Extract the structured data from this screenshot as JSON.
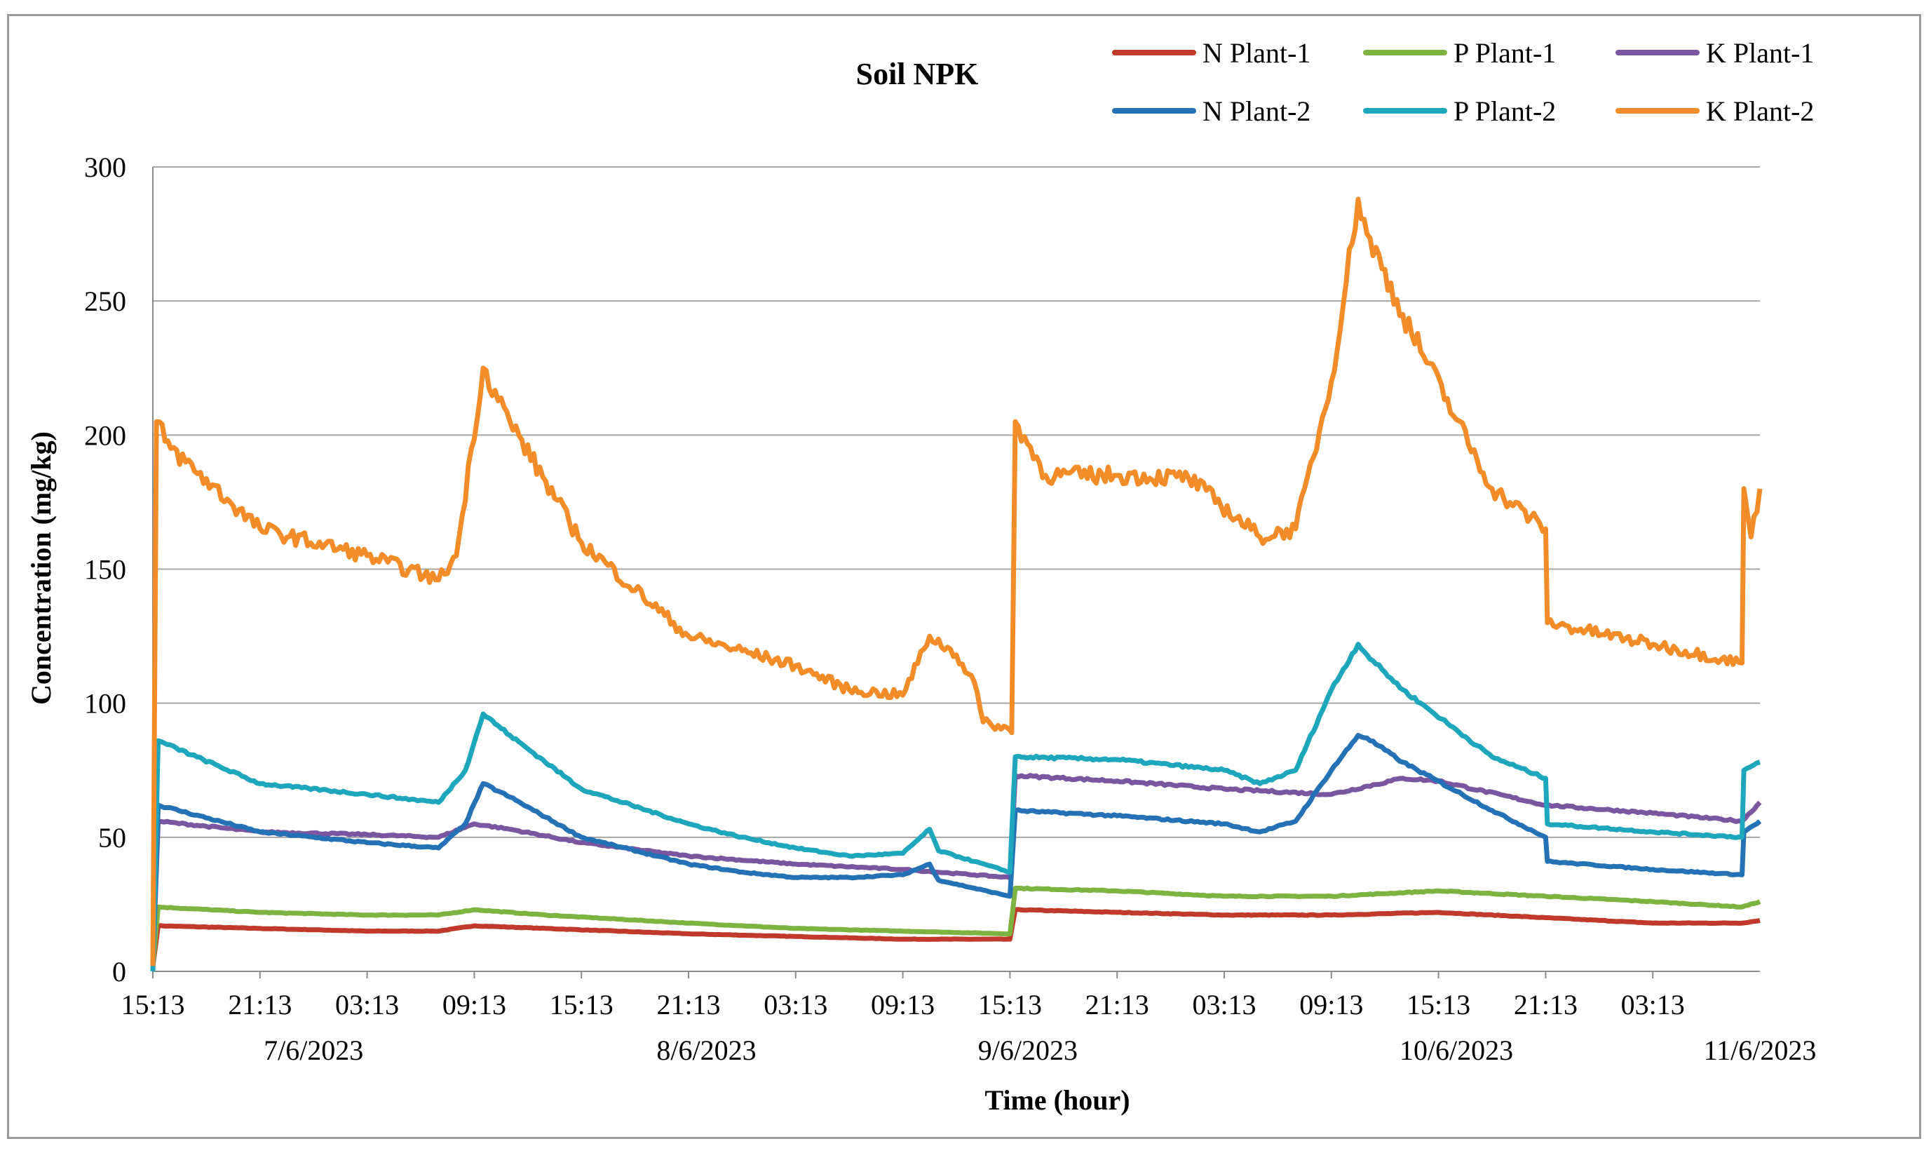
{
  "chart_data": {
    "type": "line",
    "title": "Soil NPK",
    "xlabel": "Time (hour)",
    "ylabel": "Concentration (mg/kg)",
    "ylim": [
      0,
      300
    ],
    "y_ticks": [
      "0",
      "50",
      "100",
      "150",
      "200",
      "250",
      "300"
    ],
    "grid": true,
    "legend_position": "top-right",
    "x_tick_labels": [
      "15:13",
      "21:13",
      "03:13",
      "09:13",
      "15:13",
      "21:13",
      "03:13",
      "09:13",
      "15:13",
      "21:13",
      "03:13",
      "09:13",
      "15:13",
      "21:13",
      "03:13"
    ],
    "date_labels": [
      {
        "label": "7/6/2023",
        "hour": 9
      },
      {
        "label": "8/6/2023",
        "hour": 31
      },
      {
        "label": "9/6/2023",
        "hour": 49
      },
      {
        "label": "10/6/2023",
        "hour": 73
      },
      {
        "label": "11/6/2023",
        "hour": 90
      }
    ],
    "x_unit": "hours since 7/6/2023 15:13",
    "xlim": [
      0,
      90
    ],
    "series": [
      {
        "name": "N Plant-1",
        "color": "#C0392B",
        "x": [
          0,
          0.3,
          6,
          12,
          16,
          18,
          22,
          30,
          36,
          42,
          48,
          48.3,
          54,
          60,
          66,
          72,
          78,
          84,
          89,
          90
        ],
        "y": [
          2,
          17,
          16,
          15,
          15,
          17,
          16,
          14,
          13,
          12,
          12,
          23,
          22,
          21,
          21,
          22,
          20,
          18,
          18,
          19
        ]
      },
      {
        "name": "P Plant-1",
        "color": "#7DB441",
        "x": [
          0,
          0.3,
          6,
          12,
          16,
          18,
          22,
          30,
          36,
          42,
          48,
          48.3,
          54,
          60,
          66,
          72,
          78,
          84,
          89,
          90
        ],
        "y": [
          2,
          24,
          22,
          21,
          21,
          23,
          21,
          18,
          16,
          15,
          14,
          31,
          30,
          28,
          28,
          30,
          28,
          26,
          24,
          26
        ]
      },
      {
        "name": "K Plant-1",
        "color": "#7B56A0",
        "x": [
          0,
          0.3,
          6,
          12,
          16,
          18,
          20,
          24,
          30,
          36,
          42,
          48,
          48.3,
          54,
          60,
          66,
          70,
          72,
          78,
          84,
          89,
          90
        ],
        "y": [
          2,
          56,
          52,
          51,
          50,
          55,
          53,
          48,
          43,
          40,
          38,
          35,
          73,
          71,
          68,
          66,
          72,
          71,
          62,
          59,
          56,
          63
        ]
      },
      {
        "name": "N Plant-2",
        "color": "#2471B5",
        "x": [
          0,
          0.3,
          6,
          12,
          16,
          17.5,
          18.5,
          20,
          24,
          30,
          33,
          36,
          39,
          42,
          43.5,
          44,
          48,
          48.3,
          54,
          60,
          62,
          64,
          66,
          67.5,
          68,
          70,
          75,
          78,
          78.1,
          84,
          89,
          89.1,
          90
        ],
        "y": [
          2,
          62,
          52,
          48,
          46,
          55,
          70,
          65,
          50,
          40,
          37,
          35,
          35,
          36,
          40,
          34,
          28,
          60,
          58,
          55,
          52,
          56,
          75,
          88,
          87,
          78,
          60,
          50,
          41,
          38,
          36,
          52,
          56
        ]
      },
      {
        "name": "P Plant-2",
        "color": "#1EA6BC",
        "x": [
          0,
          0.3,
          6,
          12,
          16,
          17.5,
          18.5,
          20,
          24,
          30,
          33,
          36,
          39,
          42,
          43.5,
          44,
          48,
          48.3,
          54,
          60,
          62,
          64,
          66,
          67.5,
          68,
          70,
          75,
          78,
          78.1,
          84,
          89,
          89.1,
          90
        ],
        "y": [
          0,
          86,
          70,
          66,
          63,
          75,
          96,
          88,
          68,
          55,
          50,
          46,
          43,
          44,
          53,
          45,
          37,
          80,
          79,
          75,
          70,
          75,
          105,
          122,
          118,
          105,
          80,
          72,
          55,
          52,
          50,
          75,
          78
        ]
      },
      {
        "name": "K Plant-2",
        "color": "#F28C28",
        "x": [
          0,
          0.2,
          1,
          6,
          12,
          16,
          17,
          18.5,
          20,
          24,
          30,
          36,
          39,
          42,
          43.5,
          45,
          46,
          46.5,
          48,
          48.1,
          48.3,
          50,
          54,
          58,
          62,
          64,
          66,
          67.5,
          68,
          70,
          75,
          78,
          78.1,
          84,
          89,
          89.1,
          89.5,
          90
        ],
        "y": [
          2,
          205,
          195,
          165,
          155,
          146,
          155,
          225,
          205,
          160,
          125,
          114,
          105,
          103,
          125,
          118,
          108,
          93,
          90,
          89,
          205,
          185,
          185,
          184,
          162,
          165,
          220,
          288,
          275,
          245,
          180,
          165,
          130,
          122,
          115,
          180,
          162,
          180
        ]
      }
    ]
  }
}
